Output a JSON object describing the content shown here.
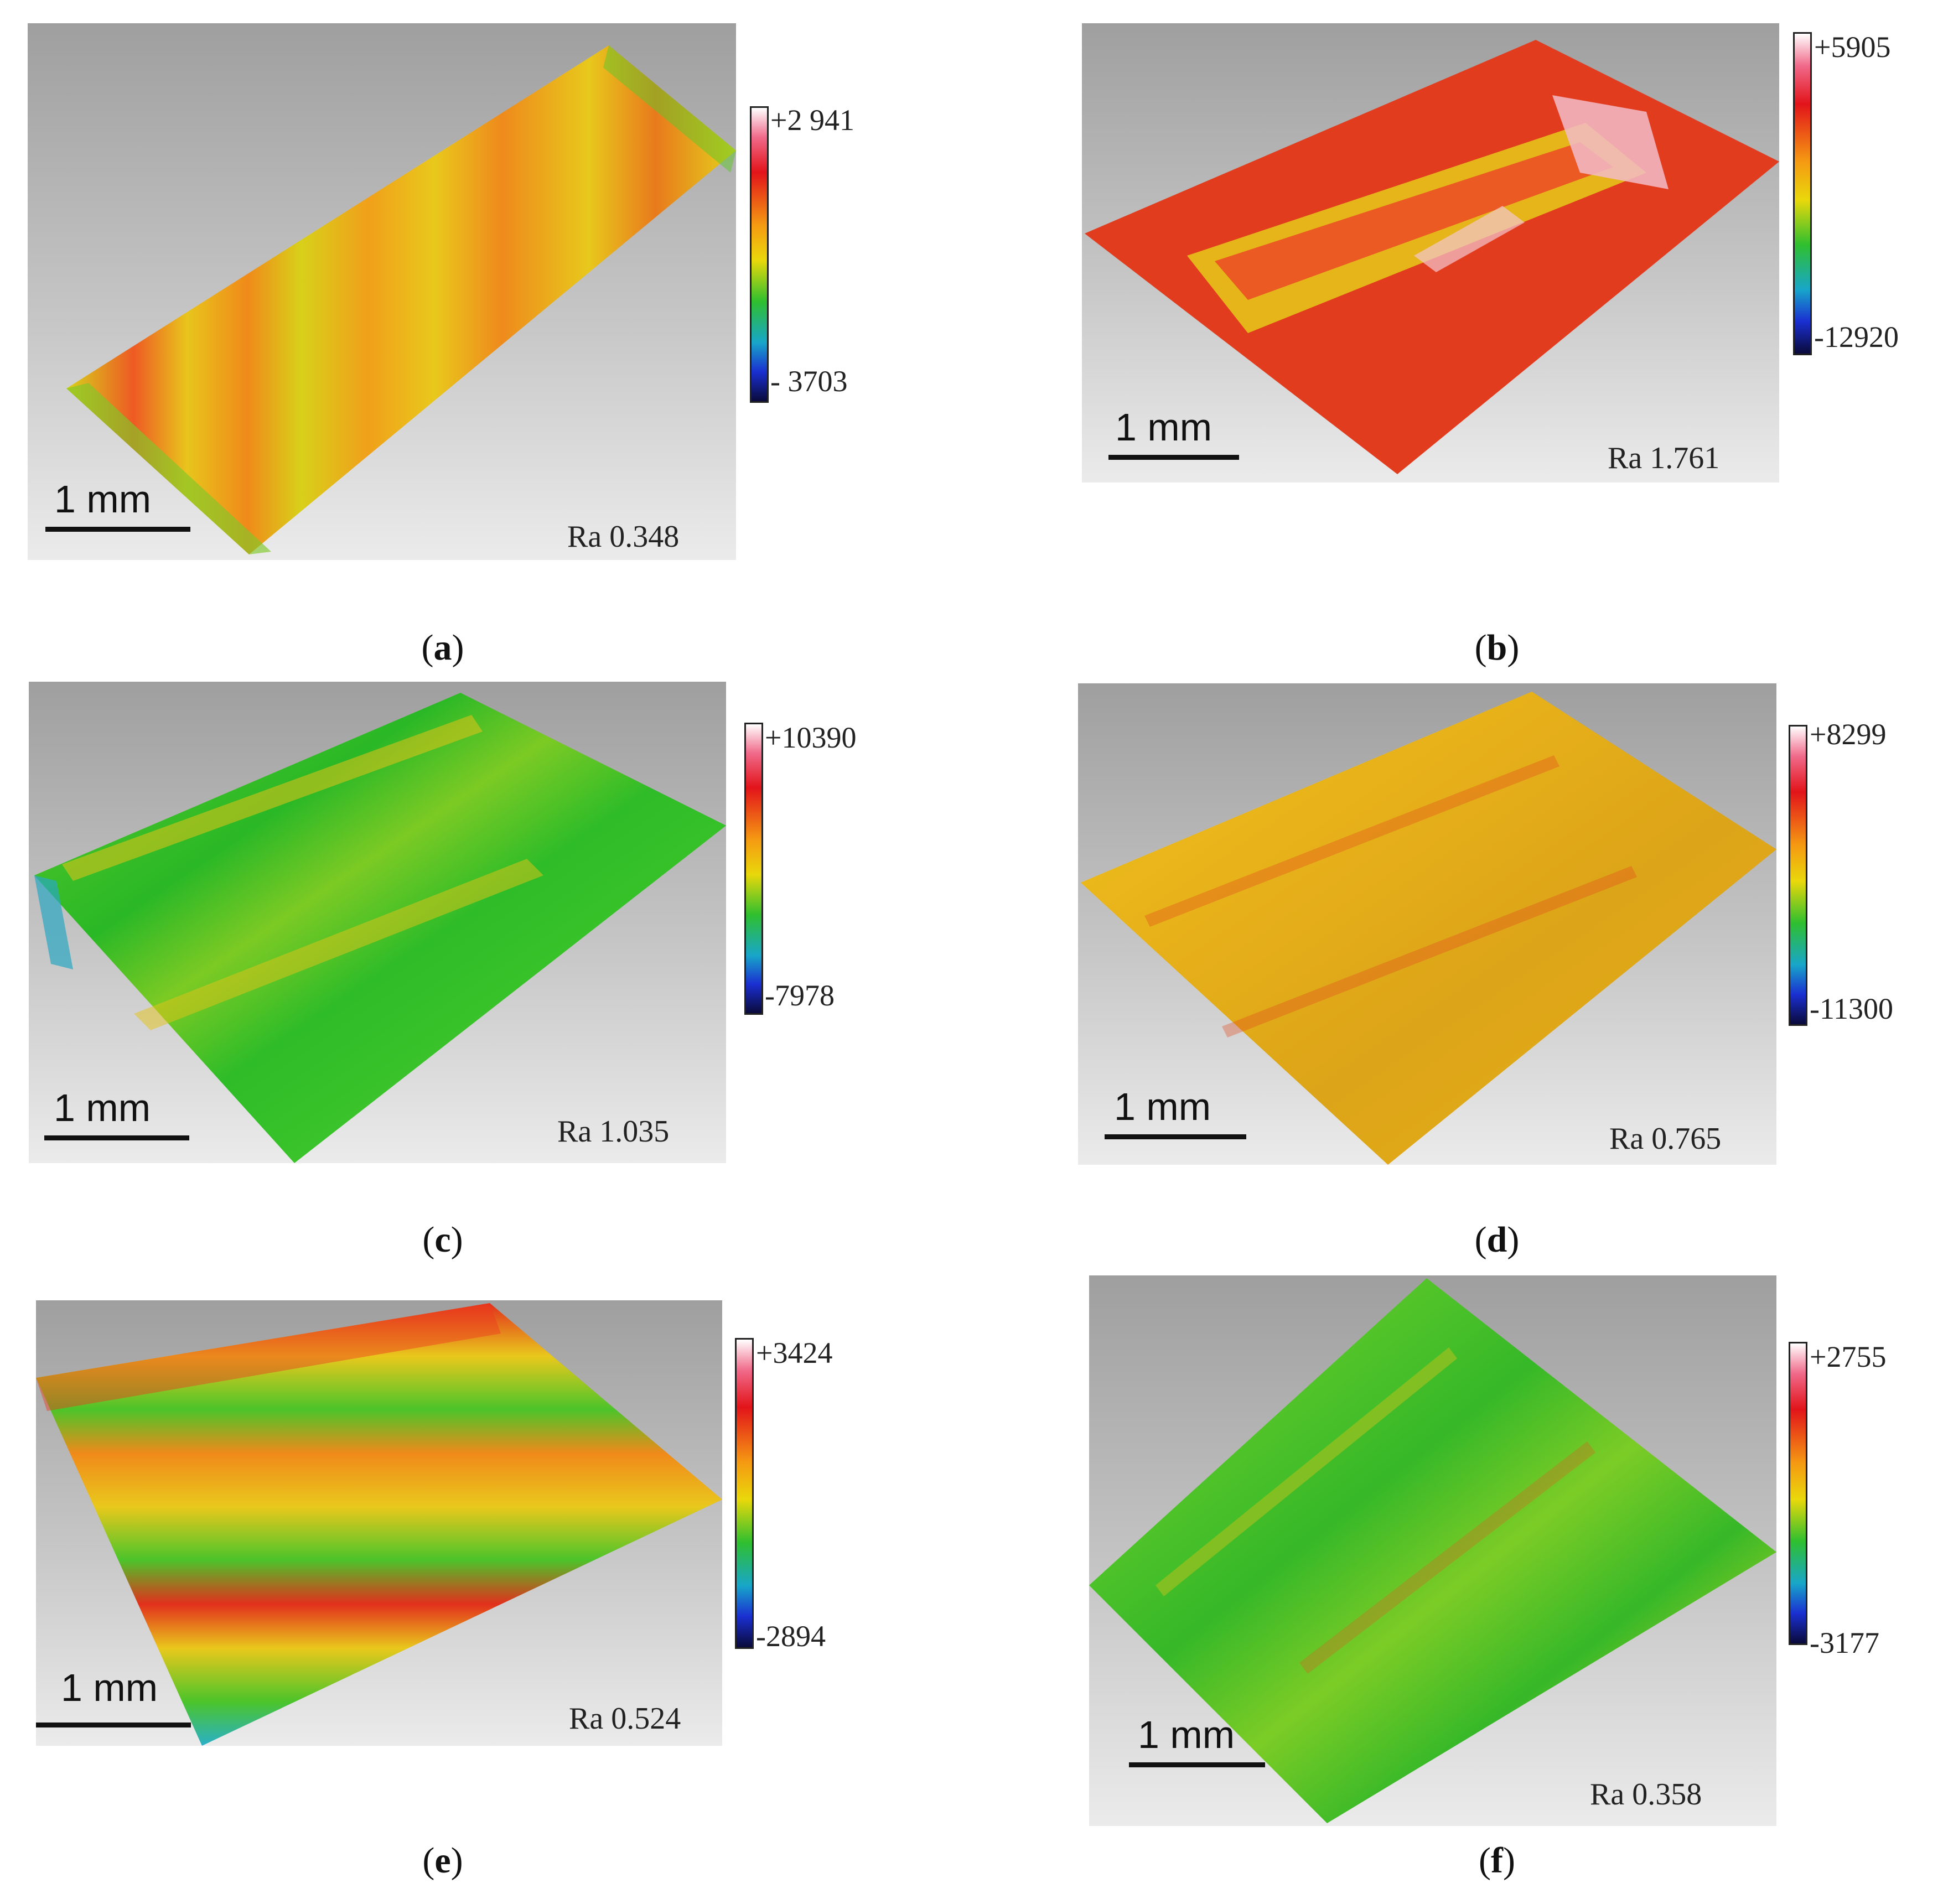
{
  "scale_label": "1 mm",
  "panels": [
    {
      "id": "a",
      "caption_letter": "a",
      "roughness": "Ra 0.348",
      "colorbar_max": "+2 941",
      "colorbar_min": "- 3703",
      "dominant_colors": [
        "#e8c21a",
        "#f09a18",
        "#d6d21a",
        "#ee4a22",
        "#5ec82a"
      ]
    },
    {
      "id": "b",
      "caption_letter": "b",
      "roughness": "Ra 1.761",
      "colorbar_max": "+5905",
      "colorbar_min": "-12920",
      "dominant_colors": [
        "#e23a1e",
        "#ef5a20",
        "#e8a31a",
        "#f4c0cc",
        "#d9c816"
      ]
    },
    {
      "id": "c",
      "caption_letter": "c",
      "roughness": "Ra 1.035",
      "colorbar_max": "+10390",
      "colorbar_min": "-7978",
      "dominant_colors": [
        "#3cc42a",
        "#28b426",
        "#8ccf22",
        "#e3c318",
        "#2aa6c0"
      ]
    },
    {
      "id": "d",
      "caption_letter": "d",
      "roughness": "Ra 0.765",
      "colorbar_max": "+8299",
      "colorbar_min": "-11300",
      "dominant_colors": [
        "#e8b21a",
        "#dca418",
        "#f0c41e",
        "#e24a1e",
        "#c9a012"
      ]
    },
    {
      "id": "e",
      "caption_letter": "e",
      "roughness": "Ra 0.524",
      "colorbar_max": "+3424",
      "colorbar_min": "-2894",
      "dominant_colors": [
        "#e9c81c",
        "#f08a1a",
        "#4cc42a",
        "#e2301c",
        "#2ab0c8"
      ]
    },
    {
      "id": "f",
      "caption_letter": "f",
      "roughness": "Ra 0.358",
      "colorbar_max": "+2755",
      "colorbar_min": "-3177",
      "dominant_colors": [
        "#5cc82a",
        "#36b828",
        "#a8d022",
        "#e0c21a",
        "#e25a1e"
      ]
    }
  ]
}
